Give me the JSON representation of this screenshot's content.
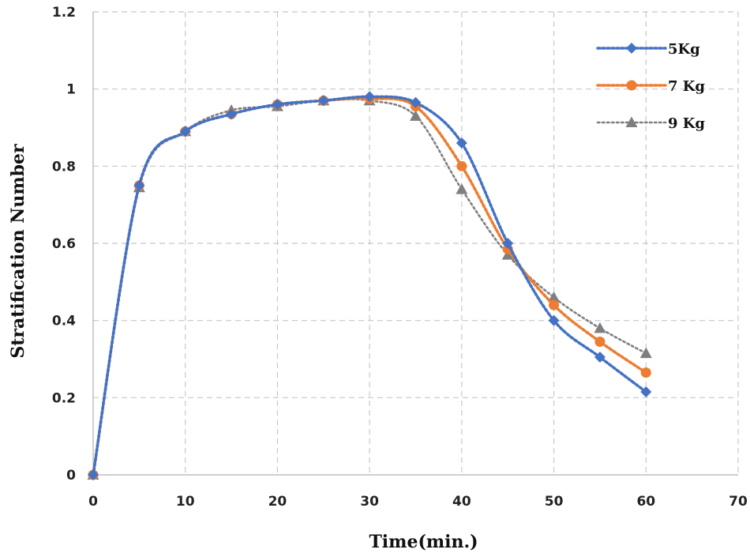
{
  "chart_data": {
    "type": "line",
    "title": "",
    "xlabel": "Time(min.)",
    "ylabel": "Stratification Number",
    "xlim": [
      0,
      70
    ],
    "ylim": [
      0,
      1.2
    ],
    "x_ticks": [
      0,
      10,
      20,
      30,
      40,
      50,
      60,
      70
    ],
    "y_ticks": [
      0,
      0.2,
      0.4,
      0.6,
      0.8,
      1,
      1.2
    ],
    "x_tick_labels": [
      "0",
      "10",
      "20",
      "30",
      "40",
      "50",
      "60",
      "70"
    ],
    "y_tick_labels": [
      "0",
      "0.2",
      "0.4",
      "0.6",
      "0.8",
      "1",
      "1.2"
    ],
    "grid": true,
    "legend_position": "top-right",
    "x": [
      0,
      5,
      10,
      15,
      20,
      25,
      30,
      35,
      40,
      45,
      50,
      55,
      60
    ],
    "series": [
      {
        "name": "5Kg",
        "color": "#4472C4",
        "marker": "diamond",
        "values": [
          0,
          0.75,
          0.89,
          0.935,
          0.96,
          0.97,
          0.98,
          0.965,
          0.86,
          0.6,
          0.4,
          0.305,
          0.215
        ]
      },
      {
        "name": "7 Kg",
        "color": "#ED7D31",
        "marker": "circle",
        "values": [
          0,
          0.75,
          0.89,
          0.935,
          0.96,
          0.97,
          0.975,
          0.955,
          0.8,
          0.585,
          0.44,
          0.345,
          0.265
        ]
      },
      {
        "name": "9 Kg",
        "color": "#7F7F7F",
        "marker": "triangle",
        "values": [
          0,
          0.745,
          0.89,
          0.945,
          0.955,
          0.97,
          0.97,
          0.93,
          0.74,
          0.57,
          0.46,
          0.38,
          0.315
        ]
      }
    ]
  }
}
